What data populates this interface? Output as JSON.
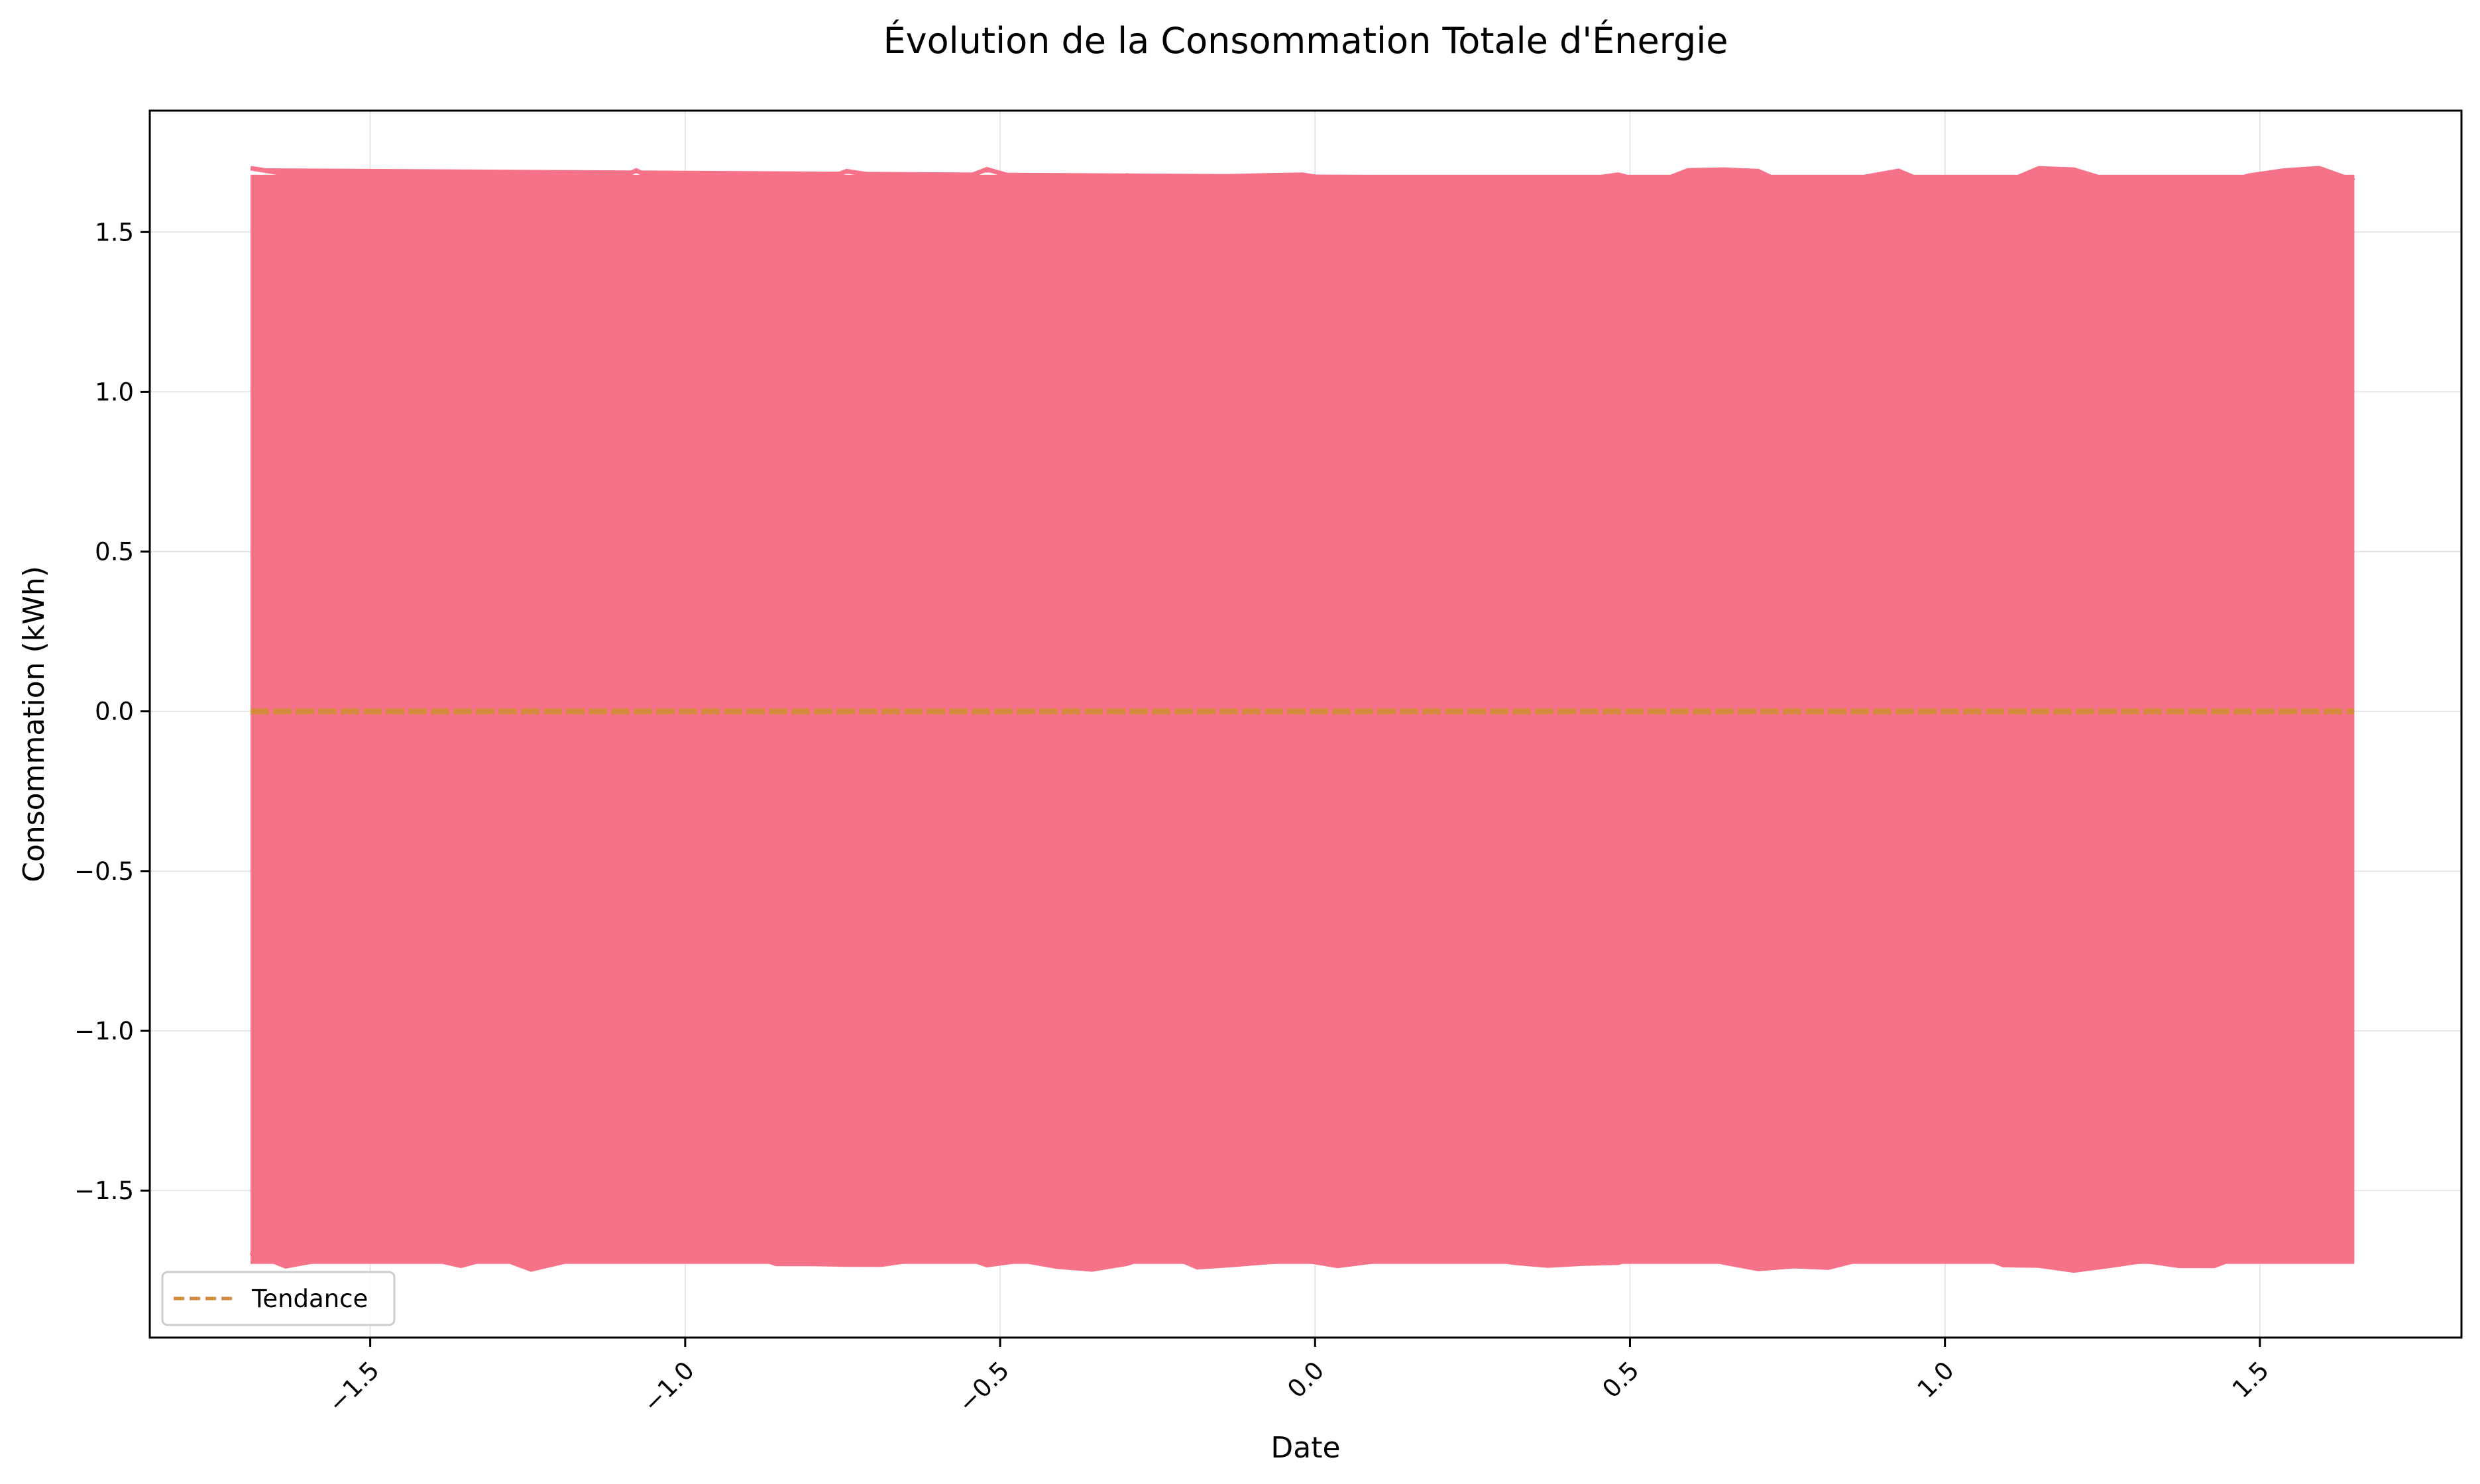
{
  "chart_data": {
    "type": "line",
    "title": "Évolution de la Consommation Totale d'Énergie",
    "xlabel": "Date",
    "ylabel": "Consommation (kWh)",
    "xlim": [
      -1.85,
      1.82
    ],
    "ylim": [
      -1.96,
      1.88
    ],
    "x_ticks": [
      -1.5,
      -1.0,
      -0.5,
      0.0,
      0.5,
      1.0,
      1.5
    ],
    "x_tick_labels": [
      "−1.5",
      "−1.0",
      "−0.5",
      "0.0",
      "0.5",
      "1.0",
      "1.5"
    ],
    "y_ticks": [
      1.5,
      1.0,
      0.5,
      0.0,
      -0.5,
      -1.0,
      -1.5
    ],
    "y_tick_labels": [
      "1.5",
      "1.0",
      "0.5",
      "0.0",
      "−0.5",
      "−1.0",
      "−1.5"
    ],
    "grid": true,
    "legend_position": "lower-left",
    "series": [
      {
        "color": "#f67288",
        "x_range": [
          -1.69,
          1.65
        ],
        "y_range": [
          -1.75,
          1.7
        ]
      },
      {
        "name": "Tendance",
        "style": "dashed",
        "color": "#d58b3f",
        "x": [
          -1.69,
          1.65
        ],
        "values": [
          0.0,
          0.0
        ]
      }
    ]
  }
}
